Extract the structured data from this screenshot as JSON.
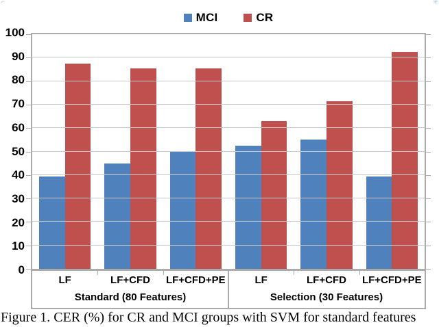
{
  "caption": "Figure 1. CER (%) for CR and MCI groups with SVM for standard features",
  "legend": {
    "items": [
      {
        "label": "MCI",
        "color": "#4F81BD"
      },
      {
        "label": "CR",
        "color": "#C0504D"
      }
    ]
  },
  "chart_data": {
    "type": "bar",
    "title": "",
    "xlabel": "",
    "ylabel": "",
    "categories": [
      "LF",
      "LF+CFD",
      "LF+CFD+PE",
      "LF",
      "LF+CFD",
      "LF+CFD+PE"
    ],
    "category_groups": [
      {
        "label": "Standard (80 Features)",
        "span": 3
      },
      {
        "label": "Selection (30 Features)",
        "span": 3
      }
    ],
    "series": [
      {
        "name": "MCI",
        "color": "#4F81BD",
        "values": [
          39.5,
          45,
          50,
          52.5,
          55,
          39.5
        ]
      },
      {
        "name": "CR",
        "color": "#C0504D",
        "values": [
          87.5,
          85.5,
          85.5,
          63,
          71.5,
          92.5
        ]
      }
    ],
    "ylim": [
      0,
      100
    ],
    "yticks": [
      0,
      10,
      20,
      30,
      40,
      50,
      60,
      70,
      80,
      90,
      100
    ],
    "grid": true,
    "legend_position": "top-center"
  },
  "style": {
    "grid_color": "#C9C9C9",
    "border_color": "#ABABAB",
    "background": "#FFFFFF",
    "text_color": "#000000"
  }
}
